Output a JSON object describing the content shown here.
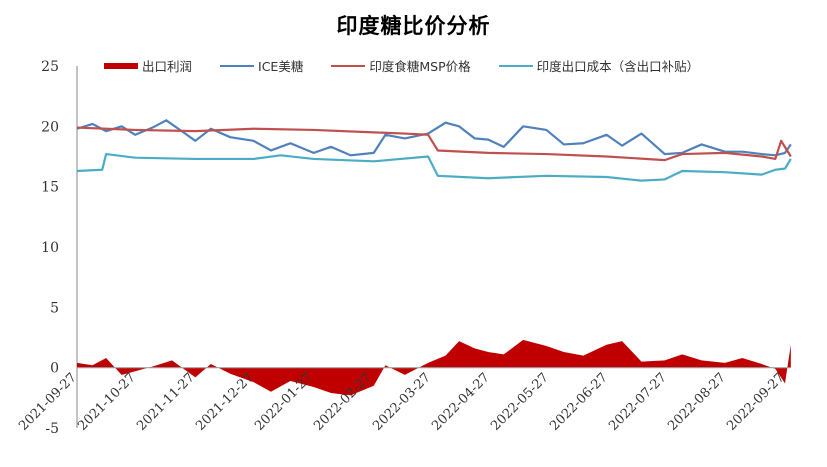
{
  "chart_data": {
    "type": "line+area",
    "title": "印度糖比价分析",
    "xlabel": "",
    "ylabel": "",
    "ylim": [
      -5,
      25
    ],
    "yticks": [
      -5,
      0,
      5,
      10,
      15,
      20,
      25
    ],
    "grid": false,
    "legend_position": "top",
    "x_tick_labels": [
      "2021-09-27",
      "2021-10-27",
      "2021-11-27",
      "2021-12-27",
      "2022-01-27",
      "2022-02-27",
      "2022-03-27",
      "2022-04-27",
      "2022-05-27",
      "2022-06-27",
      "2022-07-27",
      "2022-08-27",
      "2022-09-27"
    ],
    "series": [
      {
        "name": "出口利润",
        "type": "area",
        "color": "#C00000",
        "x": [
          "2021-09-27",
          "2021-10-05",
          "2021-10-12",
          "2021-10-20",
          "2021-10-27",
          "2021-11-05",
          "2021-11-15",
          "2021-11-27",
          "2021-12-05",
          "2021-12-15",
          "2021-12-27",
          "2022-01-05",
          "2022-01-15",
          "2022-01-27",
          "2022-02-05",
          "2022-02-15",
          "2022-02-27",
          "2022-03-05",
          "2022-03-15",
          "2022-03-27",
          "2022-04-05",
          "2022-04-12",
          "2022-04-20",
          "2022-04-27",
          "2022-05-05",
          "2022-05-15",
          "2022-05-27",
          "2022-06-05",
          "2022-06-15",
          "2022-06-27",
          "2022-07-05",
          "2022-07-15",
          "2022-07-27",
          "2022-08-05",
          "2022-08-15",
          "2022-08-27",
          "2022-09-05",
          "2022-09-15",
          "2022-09-22",
          "2022-09-27",
          "2022-09-30"
        ],
        "values": [
          0.4,
          0.2,
          0.8,
          -0.6,
          -0.3,
          0.1,
          0.6,
          -0.8,
          0.3,
          -0.5,
          -1.2,
          -2.0,
          -1.1,
          -1.6,
          -2.1,
          -2.3,
          -1.5,
          0.2,
          -0.6,
          0.4,
          1.0,
          2.2,
          1.6,
          1.3,
          1.1,
          2.3,
          1.8,
          1.3,
          1.0,
          1.9,
          2.2,
          0.5,
          0.6,
          1.1,
          0.6,
          0.4,
          0.8,
          0.3,
          -0.1,
          -1.3,
          1.9
        ]
      },
      {
        "name": "ICE美糖",
        "type": "line",
        "color": "#4F81BD",
        "x": [
          "2021-09-27",
          "2021-10-05",
          "2021-10-12",
          "2021-10-20",
          "2021-10-27",
          "2021-11-05",
          "2021-11-12",
          "2021-11-20",
          "2021-11-27",
          "2021-12-05",
          "2021-12-15",
          "2021-12-27",
          "2022-01-05",
          "2022-01-15",
          "2022-01-27",
          "2022-02-05",
          "2022-02-15",
          "2022-02-27",
          "2022-03-05",
          "2022-03-15",
          "2022-03-27",
          "2022-04-05",
          "2022-04-12",
          "2022-04-20",
          "2022-04-27",
          "2022-05-05",
          "2022-05-15",
          "2022-05-27",
          "2022-06-05",
          "2022-06-15",
          "2022-06-27",
          "2022-07-05",
          "2022-07-15",
          "2022-07-27",
          "2022-08-05",
          "2022-08-15",
          "2022-08-27",
          "2022-09-05",
          "2022-09-15",
          "2022-09-22",
          "2022-09-27",
          "2022-09-30"
        ],
        "values": [
          19.8,
          20.2,
          19.6,
          20.0,
          19.3,
          19.9,
          20.5,
          19.6,
          18.8,
          19.8,
          19.1,
          18.8,
          18.0,
          18.6,
          17.8,
          18.3,
          17.6,
          17.8,
          19.3,
          19.0,
          19.4,
          20.3,
          20.0,
          19.0,
          18.9,
          18.3,
          20.0,
          19.7,
          18.5,
          18.6,
          19.3,
          18.4,
          19.4,
          17.7,
          17.8,
          18.5,
          17.9,
          17.9,
          17.7,
          17.6,
          17.8,
          18.5
        ]
      },
      {
        "name": "印度食糖MSP价格",
        "type": "line",
        "color": "#C0504D",
        "x": [
          "2021-09-27",
          "2021-10-27",
          "2021-11-27",
          "2021-12-27",
          "2022-01-27",
          "2022-02-27",
          "2022-03-15",
          "2022-03-27",
          "2022-04-01",
          "2022-04-27",
          "2022-05-27",
          "2022-06-27",
          "2022-07-27",
          "2022-08-05",
          "2022-08-27",
          "2022-09-15",
          "2022-09-22",
          "2022-09-25",
          "2022-09-30"
        ],
        "values": [
          19.9,
          19.7,
          19.6,
          19.8,
          19.7,
          19.5,
          19.4,
          19.3,
          18.0,
          17.8,
          17.7,
          17.5,
          17.2,
          17.7,
          17.8,
          17.5,
          17.3,
          18.8,
          17.5
        ]
      },
      {
        "name": "印度出口成本（含出口补贴）",
        "type": "line",
        "color": "#4BACC6",
        "x": [
          "2021-09-27",
          "2021-10-10",
          "2021-10-12",
          "2021-10-27",
          "2021-11-27",
          "2021-12-27",
          "2022-01-10",
          "2022-01-27",
          "2022-02-27",
          "2022-03-27",
          "2022-04-01",
          "2022-04-27",
          "2022-05-27",
          "2022-06-27",
          "2022-07-15",
          "2022-07-27",
          "2022-08-05",
          "2022-08-27",
          "2022-09-15",
          "2022-09-22",
          "2022-09-27",
          "2022-09-30"
        ],
        "values": [
          16.3,
          16.4,
          17.7,
          17.4,
          17.3,
          17.3,
          17.6,
          17.3,
          17.1,
          17.5,
          15.9,
          15.7,
          15.9,
          15.8,
          15.5,
          15.6,
          16.3,
          16.2,
          16.0,
          16.4,
          16.5,
          17.3
        ]
      }
    ]
  },
  "legend": {
    "items": [
      {
        "label": "出口利润",
        "color": "#C00000",
        "kind": "bar"
      },
      {
        "label": "ICE美糖",
        "color": "#4F81BD",
        "kind": "line"
      },
      {
        "label": "印度食糖MSP价格",
        "color": "#C0504D",
        "kind": "line"
      },
      {
        "label": "印度出口成本（含出口补贴）",
        "color": "#4BACC6",
        "kind": "line"
      }
    ]
  }
}
